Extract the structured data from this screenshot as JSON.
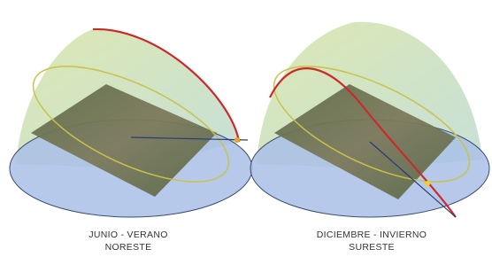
{
  "panels": [
    {
      "title": "JUNIO - VERANO",
      "subtitle": "NORESTE"
    },
    {
      "title": "DICIEMBRE - INVIERNO",
      "subtitle": "SURESTE"
    }
  ]
}
